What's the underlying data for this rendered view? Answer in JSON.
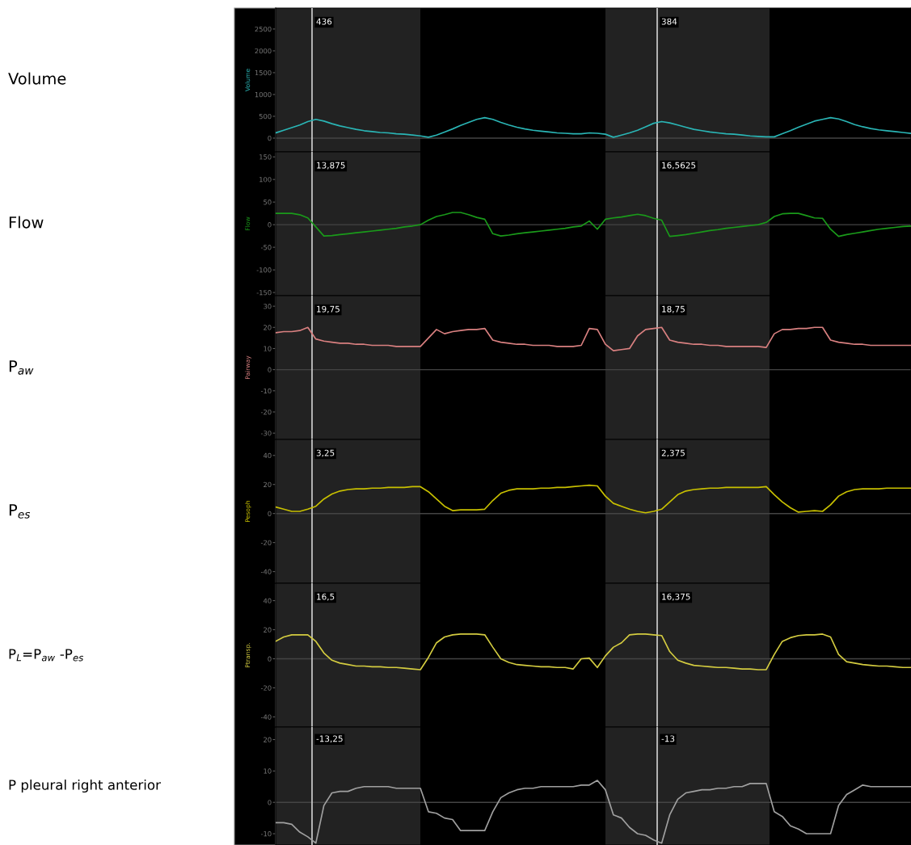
{
  "chart_data": [
    {
      "type": "line",
      "ylabel": "Volume",
      "annotations": [
        "Volume",
        "436",
        "384"
      ],
      "categories": [
        null,
        null,
        null,
        null,
        null,
        null,
        null,
        null,
        null,
        null,
        null,
        null,
        null,
        null,
        null,
        null,
        null,
        null,
        null,
        null,
        null,
        null,
        null,
        null,
        null,
        null,
        null,
        null,
        null,
        null,
        null,
        null,
        null,
        null,
        null,
        null,
        null,
        null,
        null,
        null,
        null,
        null,
        null,
        null,
        null,
        null,
        null,
        null,
        null,
        null,
        null,
        null,
        null,
        null,
        null,
        null,
        null,
        null,
        null,
        null,
        null,
        null,
        null,
        null,
        null,
        null,
        null,
        null,
        null,
        null,
        null,
        null,
        null,
        null,
        null,
        null,
        null,
        null,
        null,
        null
      ],
      "series": [
        {
          "color": "#2ab5b5",
          "values": [
            120,
            180,
            240,
            300,
            380,
            430,
            390,
            330,
            280,
            240,
            200,
            170,
            150,
            130,
            120,
            100,
            90,
            70,
            50,
            20,
            70,
            140,
            210,
            290,
            360,
            430,
            470,
            430,
            360,
            300,
            250,
            210,
            180,
            160,
            140,
            120,
            110,
            100,
            100,
            120,
            110,
            90,
            20,
            70,
            120,
            180,
            260,
            340,
            380,
            350,
            300,
            250,
            200,
            170,
            140,
            120,
            100,
            90,
            70,
            50,
            40,
            30,
            30,
            100,
            170,
            250,
            320,
            390,
            430,
            470,
            440,
            380,
            310,
            260,
            220,
            190,
            170,
            150,
            130,
            110
          ]
        }
      ],
      "ylim": [
        -315,
        2980
      ],
      "yticks": [
        0,
        500,
        1000,
        1500,
        2000,
        2500
      ],
      "tick_labels": "y",
      "marker": "none",
      "line_style": "solid",
      "ref_lines": [
        {
          "axis": "y",
          "value": 0,
          "color": "#444444"
        }
      ]
    },
    {
      "type": "line",
      "ylabel": "Flow",
      "annotations": [
        "Flow",
        "13,875",
        "16,5625"
      ],
      "categories": [
        null,
        null,
        null,
        null,
        null,
        null,
        null,
        null,
        null,
        null,
        null,
        null,
        null,
        null,
        null,
        null,
        null,
        null,
        null,
        null,
        null,
        null,
        null,
        null,
        null,
        null,
        null,
        null,
        null,
        null,
        null,
        null,
        null,
        null,
        null,
        null,
        null,
        null,
        null,
        null,
        null,
        null,
        null,
        null,
        null,
        null,
        null,
        null,
        null,
        null,
        null,
        null,
        null,
        null,
        null,
        null,
        null,
        null,
        null,
        null,
        null,
        null,
        null,
        null,
        null,
        null,
        null,
        null,
        null,
        null,
        null,
        null,
        null,
        null,
        null,
        null,
        null,
        null,
        null,
        null
      ],
      "series": [
        {
          "color": "#1a9a1a",
          "values": [
            25,
            25,
            25,
            22,
            15,
            -5,
            -25,
            -24,
            -22,
            -20,
            -18,
            -16,
            -14,
            -12,
            -10,
            -8,
            -5,
            -3,
            0,
            10,
            18,
            22,
            27,
            27,
            22,
            16,
            12,
            -20,
            -25,
            -23,
            -20,
            -18,
            -16,
            -14,
            -12,
            -10,
            -8,
            -5,
            -3,
            8,
            -10,
            12,
            15,
            17,
            20,
            23,
            20,
            14,
            10,
            -26,
            -24,
            -22,
            -19,
            -16,
            -13,
            -11,
            -8,
            -6,
            -4,
            -2,
            0,
            5,
            18,
            24,
            25,
            25,
            20,
            15,
            14,
            -10,
            -26,
            -22,
            -19,
            -16,
            -13,
            -10,
            -8,
            -6,
            -4,
            -3
          ]
        }
      ],
      "ylim": [
        -157,
        161
      ],
      "yticks": [
        -150,
        -100,
        -50,
        0,
        50,
        100,
        150
      ],
      "tick_labels": "y",
      "marker": "none",
      "line_style": "solid",
      "ref_lines": [
        {
          "axis": "y",
          "value": 0,
          "color": "#444444"
        }
      ]
    },
    {
      "type": "line",
      "ylabel": "P$_{aw}$",
      "annotations": [
        "Pairway",
        "19,75",
        "18,75"
      ],
      "categories": [
        null,
        null,
        null,
        null,
        null,
        null,
        null,
        null,
        null,
        null,
        null,
        null,
        null,
        null,
        null,
        null,
        null,
        null,
        null,
        null,
        null,
        null,
        null,
        null,
        null,
        null,
        null,
        null,
        null,
        null,
        null,
        null,
        null,
        null,
        null,
        null,
        null,
        null,
        null,
        null,
        null,
        null,
        null,
        null,
        null,
        null,
        null,
        null,
        null,
        null,
        null,
        null,
        null,
        null,
        null,
        null,
        null,
        null,
        null,
        null,
        null,
        null,
        null,
        null,
        null,
        null,
        null,
        null,
        null,
        null,
        null,
        null,
        null,
        null,
        null,
        null,
        null,
        null,
        null,
        null
      ],
      "series": [
        {
          "color": "#d98080",
          "values": [
            17.5,
            18,
            18,
            18.5,
            20,
            14.5,
            13.5,
            13,
            12.5,
            12.5,
            12,
            12,
            11.5,
            11.5,
            11.5,
            11,
            11,
            11,
            11,
            15,
            19,
            17,
            18,
            18.5,
            19,
            19,
            19.5,
            14,
            13,
            12.5,
            12,
            12,
            11.5,
            11.5,
            11.5,
            11,
            11,
            11,
            11.5,
            19.5,
            19,
            12,
            9,
            9.5,
            10,
            16,
            19,
            19.5,
            20,
            14,
            13,
            12.5,
            12,
            12,
            11.5,
            11.5,
            11,
            11,
            11,
            11,
            11,
            10.5,
            17,
            19,
            19,
            19.5,
            19.5,
            20,
            20,
            14,
            13,
            12.5,
            12,
            12,
            11.5,
            11.5,
            11.5,
            11.5,
            11.5,
            11.5
          ]
        }
      ],
      "ylim": [
        -33,
        35
      ],
      "yticks": [
        -30,
        -20,
        -10,
        0,
        10,
        20,
        30
      ],
      "tick_labels": "y",
      "marker": "none",
      "line_style": "solid",
      "ref_lines": [
        {
          "axis": "y",
          "value": 0,
          "color": "#444444"
        }
      ]
    },
    {
      "type": "line",
      "ylabel": "P$_{es}$",
      "annotations": [
        "Pesoph",
        "3,25",
        "2,375"
      ],
      "categories": [
        null,
        null,
        null,
        null,
        null,
        null,
        null,
        null,
        null,
        null,
        null,
        null,
        null,
        null,
        null,
        null,
        null,
        null,
        null,
        null,
        null,
        null,
        null,
        null,
        null,
        null,
        null,
        null,
        null,
        null,
        null,
        null,
        null,
        null,
        null,
        null,
        null,
        null,
        null,
        null,
        null,
        null,
        null,
        null,
        null,
        null,
        null,
        null,
        null,
        null,
        null,
        null,
        null,
        null,
        null,
        null,
        null,
        null,
        null,
        null,
        null,
        null,
        null,
        null,
        null,
        null,
        null,
        null,
        null,
        null,
        null,
        null,
        null,
        null,
        null,
        null,
        null,
        null,
        null,
        null
      ],
      "series": [
        {
          "color": "#c8c000",
          "values": [
            4.5,
            3,
            1.5,
            1.5,
            3,
            5,
            10,
            13.5,
            15.5,
            16.5,
            17,
            17,
            17.5,
            17.5,
            18,
            18,
            18,
            18.5,
            18.5,
            15,
            10,
            5,
            2,
            2.5,
            2.5,
            2.5,
            3,
            9,
            14,
            16,
            17,
            17,
            17,
            17.5,
            17.5,
            18,
            18,
            18.5,
            19,
            19.5,
            19,
            12,
            7,
            5,
            3,
            1.5,
            0.5,
            1.5,
            3,
            8,
            13,
            15.5,
            16.5,
            17,
            17.5,
            17.5,
            18,
            18,
            18,
            18,
            18,
            18.5,
            13,
            8,
            4,
            1,
            1.5,
            2,
            1.5,
            6,
            12,
            15,
            16.5,
            17,
            17,
            17,
            17.5,
            17.5,
            17.5,
            17.5
          ]
        }
      ],
      "ylim": [
        -48,
        51
      ],
      "yticks": [
        -40,
        -20,
        0,
        20,
        40
      ],
      "tick_labels": "y",
      "marker": "none",
      "line_style": "solid",
      "ref_lines": [
        {
          "axis": "y",
          "value": 0,
          "color": "#444444"
        }
      ]
    },
    {
      "type": "line",
      "ylabel": "P$_{L}$=P$_{aw}$ -P$_{es}$",
      "annotations": [
        "Ptransp.",
        "16,5",
        "16,375"
      ],
      "categories": [
        null,
        null,
        null,
        null,
        null,
        null,
        null,
        null,
        null,
        null,
        null,
        null,
        null,
        null,
        null,
        null,
        null,
        null,
        null,
        null,
        null,
        null,
        null,
        null,
        null,
        null,
        null,
        null,
        null,
        null,
        null,
        null,
        null,
        null,
        null,
        null,
        null,
        null,
        null,
        null,
        null,
        null,
        null,
        null,
        null,
        null,
        null,
        null,
        null,
        null,
        null,
        null,
        null,
        null,
        null,
        null,
        null,
        null,
        null,
        null,
        null,
        null,
        null,
        null,
        null,
        null,
        null,
        null,
        null,
        null,
        null,
        null,
        null,
        null,
        null,
        null,
        null,
        null,
        null,
        null
      ],
      "series": [
        {
          "color": "#d4cc40",
          "values": [
            12,
            15,
            16.5,
            16.5,
            16.5,
            12,
            4,
            -1,
            -3,
            -4,
            -5,
            -5,
            -5.5,
            -5.5,
            -6,
            -6,
            -6.5,
            -7,
            -7.5,
            1,
            11,
            15,
            16.5,
            17,
            17,
            17,
            16.5,
            8,
            0,
            -2.5,
            -4,
            -4.5,
            -5,
            -5.5,
            -5.5,
            -6,
            -6,
            -7,
            0,
            0.5,
            -6,
            2,
            8,
            11,
            16.5,
            17,
            17,
            16.5,
            16,
            5,
            -1,
            -3,
            -4.5,
            -5,
            -5.5,
            -6,
            -6,
            -6.5,
            -7,
            -7,
            -7.5,
            -7.5,
            3,
            12,
            14.5,
            16,
            16.5,
            16.5,
            17,
            15,
            3,
            -2,
            -3,
            -4,
            -4.5,
            -5,
            -5,
            -5.5,
            -6,
            -6
          ]
        }
      ],
      "ylim": [
        -47,
        52
      ],
      "yticks": [
        -40,
        -20,
        0,
        20,
        40
      ],
      "tick_labels": "y",
      "marker": "none",
      "line_style": "solid",
      "ref_lines": [
        {
          "axis": "y",
          "value": 0,
          "color": "#444444"
        }
      ]
    },
    {
      "type": "line",
      "ylabel": "P pleural right anterior",
      "annotations": [
        null,
        "-13,25",
        "-13"
      ],
      "categories": [
        null,
        null,
        null,
        null,
        null,
        null,
        null,
        null,
        null,
        null,
        null,
        null,
        null,
        null,
        null,
        null,
        null,
        null,
        null,
        null,
        null,
        null,
        null,
        null,
        null,
        null,
        null,
        null,
        null,
        null,
        null,
        null,
        null,
        null,
        null,
        null,
        null,
        null,
        null,
        null,
        null,
        null,
        null,
        null,
        null,
        null,
        null,
        null,
        null,
        null,
        null,
        null,
        null,
        null,
        null,
        null,
        null,
        null,
        null,
        null,
        null,
        null,
        null,
        null,
        null,
        null,
        null,
        null,
        null,
        null,
        null,
        null,
        null,
        null,
        null,
        null,
        null,
        null,
        null,
        null
      ],
      "series": [
        {
          "color": "#a0a0a0",
          "values": [
            -6.5,
            -6.5,
            -7,
            -9.5,
            -11,
            -13,
            -1,
            3,
            3.5,
            3.5,
            4.5,
            5,
            5,
            5,
            5,
            4.5,
            4.5,
            4.5,
            4.5,
            -3,
            -3.5,
            -5,
            -5.5,
            -9,
            -9,
            -9,
            -9,
            -3,
            1.5,
            3,
            4,
            4.5,
            4.5,
            5,
            5,
            5,
            5,
            5,
            5.5,
            5.5,
            7,
            4,
            -4,
            -5,
            -8,
            -10,
            -10.5,
            -12,
            -13,
            -4,
            1,
            3,
            3.5,
            4,
            4,
            4.5,
            4.5,
            5,
            5,
            6,
            6,
            6,
            -3,
            -4.5,
            -7.5,
            -8.5,
            -10,
            -10,
            -10,
            -10,
            -1,
            2.5,
            4,
            5.5,
            5,
            5,
            5,
            5,
            5,
            5
          ]
        }
      ],
      "ylim": [
        -13.6,
        24
      ],
      "yticks": [
        -10,
        0,
        10,
        20
      ],
      "tick_labels": "y",
      "marker": "none",
      "line_style": "solid",
      "ref_lines": [
        {
          "axis": "y",
          "value": 0,
          "color": "#444444"
        }
      ]
    }
  ]
}
